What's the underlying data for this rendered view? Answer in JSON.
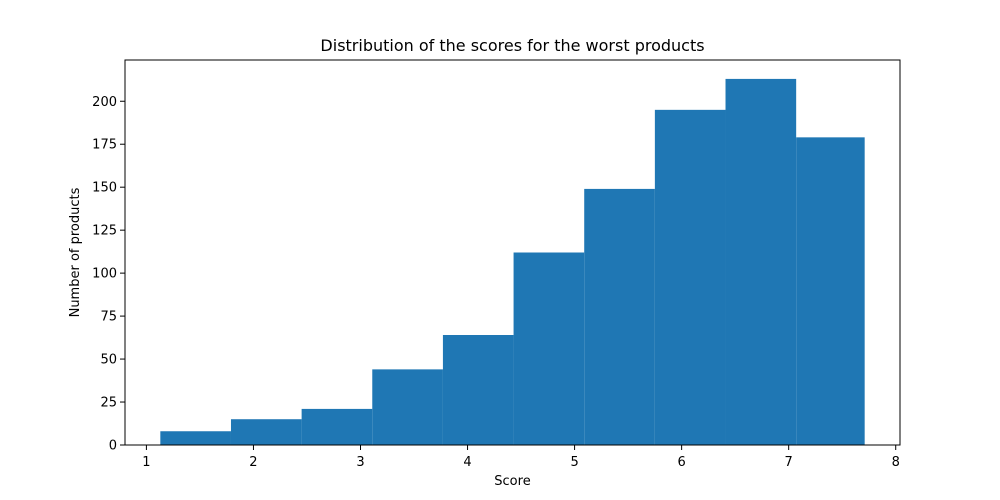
{
  "chart_data": {
    "type": "bar",
    "title": "Distribution of the scores for the worst products",
    "xlabel": "Score",
    "ylabel": "Number of products",
    "bins": [
      {
        "x0": 1.13,
        "x1": 1.79,
        "count": 8
      },
      {
        "x0": 1.79,
        "x1": 2.45,
        "count": 15
      },
      {
        "x0": 2.45,
        "x1": 3.11,
        "count": 21
      },
      {
        "x0": 3.11,
        "x1": 3.77,
        "count": 44
      },
      {
        "x0": 3.77,
        "x1": 4.43,
        "count": 64
      },
      {
        "x0": 4.43,
        "x1": 5.09,
        "count": 112
      },
      {
        "x0": 5.09,
        "x1": 5.75,
        "count": 149
      },
      {
        "x0": 5.75,
        "x1": 6.41,
        "count": 195
      },
      {
        "x0": 6.41,
        "x1": 7.07,
        "count": 213
      },
      {
        "x0": 7.07,
        "x1": 7.71,
        "count": 179
      }
    ],
    "xlim": [
      0.8,
      8.04
    ],
    "ylim": [
      0,
      224
    ],
    "xticks": [
      1,
      2,
      3,
      4,
      5,
      6,
      7,
      8
    ],
    "yticks": [
      0,
      25,
      50,
      75,
      100,
      125,
      150,
      175,
      200
    ],
    "bar_color": "#1f77b4",
    "grid": false,
    "legend": "none"
  }
}
